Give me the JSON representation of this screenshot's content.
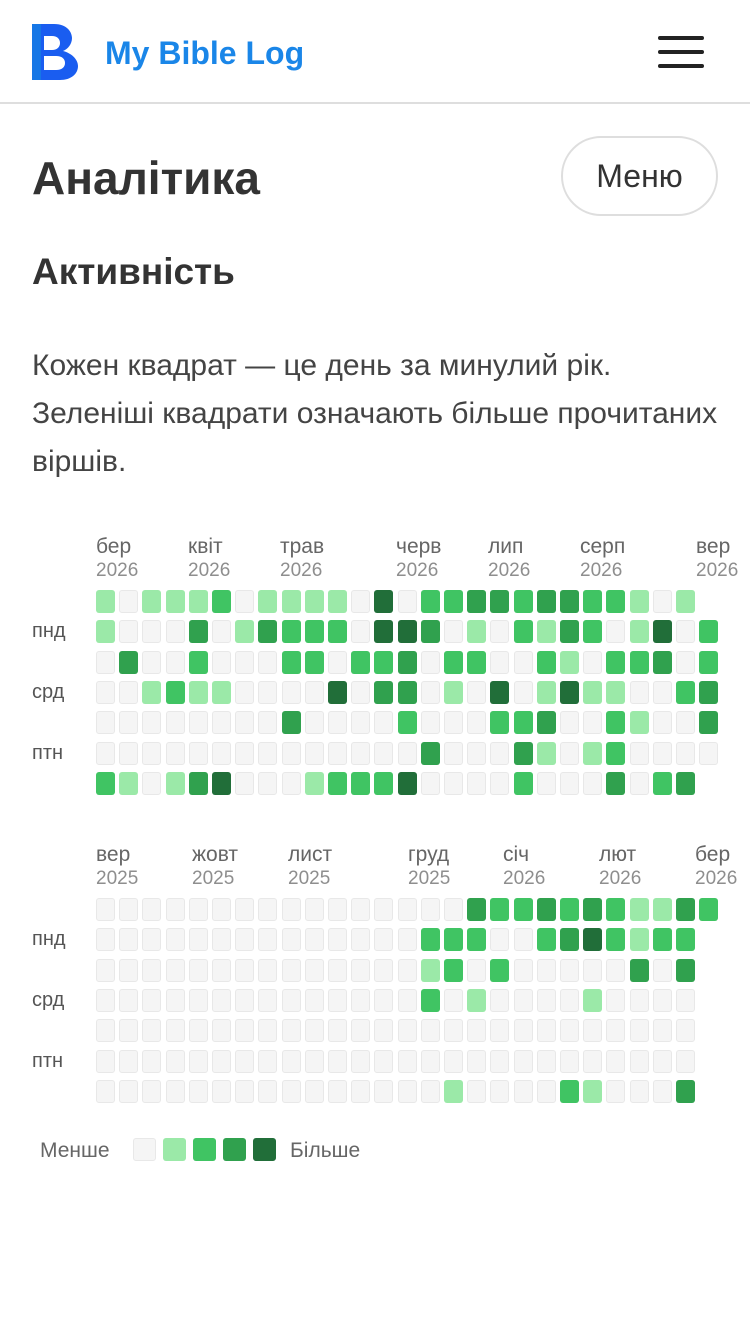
{
  "app": {
    "title": "My Bible Log"
  },
  "page": {
    "title": "Аналітика",
    "menu_button": "Меню"
  },
  "section": {
    "title": "Активність",
    "description": "Кожен квадрат — це день за минулий рік. Зеленіші квадрати означають більше прочитаних віршів."
  },
  "colors": {
    "brand": "#1a86e8",
    "levels": [
      "#f5f5f5",
      "#9be9a8",
      "#40c463",
      "#30a14e",
      "#216e39"
    ]
  },
  "day_labels": [
    "пнд",
    "срд",
    "птн"
  ],
  "legend": {
    "less": "Менше",
    "more": "Більше",
    "levels": [
      0,
      1,
      2,
      3,
      4
    ]
  },
  "blocks": [
    {
      "months": [
        {
          "month": "бер",
          "year": "2026"
        },
        {
          "month": "квіт",
          "year": "2026"
        },
        {
          "month": "трав",
          "year": "2026"
        },
        {
          "month": "черв",
          "year": "2026"
        },
        {
          "month": "лип",
          "year": "2026"
        },
        {
          "month": "серп",
          "year": "2026"
        },
        {
          "month": "вер",
          "year": "2026"
        }
      ],
      "rows": [
        [
          1,
          0,
          1,
          1,
          1,
          2,
          0,
          1,
          1,
          1,
          1,
          0,
          4,
          0,
          2,
          2,
          3,
          3,
          2,
          3,
          3,
          2,
          2,
          1,
          0,
          1
        ],
        [
          1,
          0,
          0,
          0,
          3,
          0,
          1,
          3,
          2,
          2,
          2,
          0,
          4,
          4,
          3,
          0,
          1,
          0,
          2,
          1,
          3,
          2,
          0,
          1,
          4,
          0,
          2
        ],
        [
          0,
          3,
          0,
          0,
          2,
          0,
          0,
          0,
          2,
          2,
          0,
          2,
          2,
          3,
          0,
          2,
          2,
          0,
          0,
          2,
          1,
          0,
          2,
          2,
          3,
          0,
          2
        ],
        [
          0,
          0,
          1,
          2,
          1,
          1,
          0,
          0,
          0,
          0,
          4,
          0,
          3,
          3,
          0,
          1,
          0,
          4,
          0,
          1,
          4,
          1,
          1,
          0,
          0,
          2,
          3
        ],
        [
          0,
          0,
          0,
          0,
          0,
          0,
          0,
          0,
          3,
          0,
          0,
          0,
          0,
          2,
          0,
          0,
          0,
          2,
          2,
          3,
          0,
          0,
          2,
          1,
          0,
          0,
          3
        ],
        [
          0,
          0,
          0,
          0,
          0,
          0,
          0,
          0,
          0,
          0,
          0,
          0,
          0,
          0,
          3,
          0,
          0,
          0,
          3,
          1,
          0,
          1,
          2,
          0,
          0,
          0,
          0
        ],
        [
          2,
          1,
          0,
          1,
          3,
          4,
          0,
          0,
          0,
          1,
          2,
          2,
          2,
          4,
          0,
          0,
          0,
          0,
          2,
          0,
          0,
          0,
          3,
          0,
          2,
          3
        ]
      ]
    },
    {
      "months": [
        {
          "month": "вер",
          "year": "2025"
        },
        {
          "month": "жовт",
          "year": "2025"
        },
        {
          "month": "лист",
          "year": "2025"
        },
        {
          "month": "груд",
          "year": "2025"
        },
        {
          "month": "січ",
          "year": "2026"
        },
        {
          "month": "лют",
          "year": "2026"
        },
        {
          "month": "бер",
          "year": "2026"
        }
      ],
      "rows": [
        [
          0,
          0,
          0,
          0,
          0,
          0,
          0,
          0,
          0,
          0,
          0,
          0,
          0,
          0,
          0,
          0,
          3,
          2,
          2,
          3,
          2,
          3,
          2,
          1,
          1,
          3,
          2
        ],
        [
          0,
          0,
          0,
          0,
          0,
          0,
          0,
          0,
          0,
          0,
          0,
          0,
          0,
          0,
          2,
          2,
          2,
          0,
          0,
          2,
          3,
          4,
          2,
          1,
          2,
          2
        ],
        [
          0,
          0,
          0,
          0,
          0,
          0,
          0,
          0,
          0,
          0,
          0,
          0,
          0,
          0,
          1,
          2,
          0,
          2,
          0,
          0,
          0,
          0,
          0,
          3,
          0,
          3
        ],
        [
          0,
          0,
          0,
          0,
          0,
          0,
          0,
          0,
          0,
          0,
          0,
          0,
          0,
          0,
          2,
          0,
          1,
          0,
          0,
          0,
          0,
          1,
          0,
          0,
          0,
          0
        ],
        [
          0,
          0,
          0,
          0,
          0,
          0,
          0,
          0,
          0,
          0,
          0,
          0,
          0,
          0,
          0,
          0,
          0,
          0,
          0,
          0,
          0,
          0,
          0,
          0,
          0,
          0
        ],
        [
          0,
          0,
          0,
          0,
          0,
          0,
          0,
          0,
          0,
          0,
          0,
          0,
          0,
          0,
          0,
          0,
          0,
          0,
          0,
          0,
          0,
          0,
          0,
          0,
          0,
          0
        ],
        [
          0,
          0,
          0,
          0,
          0,
          0,
          0,
          0,
          0,
          0,
          0,
          0,
          0,
          0,
          0,
          1,
          0,
          0,
          0,
          0,
          2,
          1,
          0,
          0,
          0,
          3
        ]
      ]
    }
  ]
}
